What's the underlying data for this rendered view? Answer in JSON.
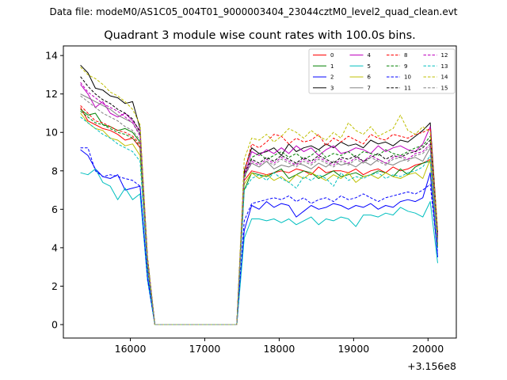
{
  "chart_data": {
    "type": "line",
    "suptitle": "Data file: modeM0/AS1C05_004T01_9000003404_23044cztM0_level2_quad_clean.evt",
    "title": "Quadrant 3 module wise count rates with 100.0s bins.",
    "xlabel": "",
    "ylabel": "",
    "x_offset_label": "+3.156e8",
    "x_offset": 315600000,
    "xlim": [
      15100,
      20380
    ],
    "ylim": [
      -0.7,
      14.5
    ],
    "xticks": [
      16000,
      17000,
      18000,
      19000,
      20000
    ],
    "yticks": [
      0,
      2,
      4,
      6,
      8,
      10,
      12,
      14
    ],
    "grid": false,
    "legend_position": "top-right",
    "x": [
      15330,
      15430,
      15530,
      15630,
      15730,
      15830,
      15930,
      16030,
      16130,
      16230,
      16330,
      16430,
      16530,
      16630,
      16730,
      16830,
      16930,
      17030,
      17130,
      17230,
      17330,
      17430,
      17530,
      17630,
      17730,
      17830,
      17930,
      18030,
      18130,
      18230,
      18330,
      18430,
      18530,
      18630,
      18730,
      18830,
      18930,
      19030,
      19130,
      19230,
      19330,
      19430,
      19530,
      19630,
      19730,
      19830,
      19930,
      20030,
      20130
    ],
    "series": [
      {
        "name": "0",
        "color": "#ff0000",
        "dash": "solid",
        "values": [
          11.3,
          10.6,
          10.4,
          10.2,
          10.1,
          9.9,
          9.6,
          9.7,
          9.2,
          3.0,
          0,
          0,
          0,
          0,
          0,
          0,
          0,
          0,
          0,
          0,
          0,
          0,
          7.5,
          8.0,
          7.9,
          7.8,
          7.9,
          8.0,
          7.9,
          8.1,
          8.0,
          7.8,
          8.2,
          7.9,
          8.0,
          8.0,
          7.9,
          8.1,
          7.8,
          8.0,
          8.1,
          7.9,
          8.2,
          8.0,
          8.1,
          8.3,
          8.4,
          8.6,
          4.2
        ]
      },
      {
        "name": "1",
        "color": "#008000",
        "dash": "solid",
        "values": [
          11.2,
          10.9,
          11.0,
          10.4,
          10.3,
          10.1,
          10.2,
          10.0,
          9.5,
          3.1,
          0,
          0,
          0,
          0,
          0,
          0,
          0,
          0,
          0,
          0,
          0,
          0,
          7.0,
          7.9,
          7.8,
          7.7,
          7.9,
          8.1,
          7.6,
          7.8,
          8.0,
          7.9,
          7.6,
          7.8,
          8.0,
          7.7,
          7.8,
          7.9,
          7.7,
          7.8,
          8.0,
          7.9,
          7.7,
          8.1,
          7.8,
          8.2,
          8.4,
          8.5,
          4.1
        ]
      },
      {
        "name": "2",
        "color": "#0000ff",
        "dash": "solid",
        "values": [
          9.1,
          8.8,
          8.1,
          7.7,
          7.6,
          7.8,
          7.0,
          7.1,
          7.2,
          2.5,
          0,
          0,
          0,
          0,
          0,
          0,
          0,
          0,
          0,
          0,
          0,
          0,
          4.9,
          6.2,
          6.0,
          6.4,
          6.1,
          6.3,
          6.2,
          5.6,
          5.9,
          6.2,
          6.0,
          6.1,
          6.3,
          6.2,
          6.0,
          6.2,
          6.1,
          6.3,
          6.0,
          6.2,
          6.1,
          6.4,
          6.5,
          6.4,
          6.6,
          7.9,
          3.5
        ]
      },
      {
        "name": "3",
        "color": "#000000",
        "dash": "solid",
        "values": [
          13.5,
          13.1,
          12.3,
          12.2,
          11.9,
          11.8,
          11.5,
          11.6,
          10.2,
          3.5,
          0,
          0,
          0,
          0,
          0,
          0,
          0,
          0,
          0,
          0,
          0,
          0,
          8.0,
          9.2,
          8.9,
          9.0,
          9.2,
          8.8,
          9.4,
          9.0,
          9.2,
          9.3,
          9.1,
          9.4,
          9.2,
          9.5,
          9.3,
          9.4,
          9.2,
          9.6,
          9.4,
          9.5,
          9.3,
          9.6,
          9.5,
          9.8,
          10.1,
          10.5,
          4.8
        ]
      },
      {
        "name": "4",
        "color": "#bf00bf",
        "dash": "solid",
        "values": [
          12.5,
          12.0,
          11.3,
          11.6,
          11.0,
          10.8,
          11.0,
          10.6,
          10.1,
          3.4,
          0,
          0,
          0,
          0,
          0,
          0,
          0,
          0,
          0,
          0,
          0,
          0,
          7.7,
          9.0,
          8.8,
          9.1,
          8.9,
          9.2,
          8.9,
          9.3,
          9.0,
          9.2,
          8.8,
          9.1,
          9.3,
          8.9,
          9.0,
          9.2,
          9.1,
          8.9,
          9.3,
          9.0,
          9.2,
          9.3,
          9.1,
          9.0,
          9.4,
          10.3,
          4.6
        ]
      },
      {
        "name": "5",
        "color": "#00bfbf",
        "dash": "solid",
        "values": [
          7.9,
          7.8,
          8.1,
          7.4,
          7.2,
          6.5,
          7.1,
          6.5,
          6.8,
          2.3,
          0,
          0,
          0,
          0,
          0,
          0,
          0,
          0,
          0,
          0,
          0,
          0,
          4.5,
          5.5,
          5.5,
          5.4,
          5.5,
          5.3,
          5.5,
          5.2,
          5.4,
          5.6,
          5.2,
          5.5,
          5.4,
          5.6,
          5.5,
          5.1,
          5.7,
          5.7,
          5.6,
          5.8,
          5.7,
          6.1,
          5.9,
          5.8,
          5.6,
          6.4,
          3.2
        ]
      },
      {
        "name": "6",
        "color": "#bfbf00",
        "dash": "solid",
        "values": [
          11.0,
          10.5,
          10.2,
          10.1,
          9.7,
          9.6,
          9.3,
          9.4,
          8.8,
          3.0,
          0,
          0,
          0,
          0,
          0,
          0,
          0,
          0,
          0,
          0,
          0,
          0,
          7.3,
          7.9,
          7.6,
          7.8,
          7.5,
          7.7,
          7.4,
          7.8,
          7.6,
          7.9,
          7.7,
          7.5,
          7.8,
          7.6,
          7.9,
          7.4,
          7.7,
          7.8,
          7.6,
          7.9,
          7.7,
          7.6,
          7.8,
          7.9,
          7.6,
          8.6,
          4.0
        ]
      },
      {
        "name": "7",
        "color": "#808080",
        "dash": "solid",
        "values": [
          12.0,
          11.8,
          11.6,
          11.4,
          11.2,
          10.9,
          10.7,
          10.5,
          9.9,
          3.3,
          0,
          0,
          0,
          0,
          0,
          0,
          0,
          0,
          0,
          0,
          0,
          0,
          7.8,
          8.4,
          8.2,
          8.5,
          8.1,
          8.3,
          8.2,
          8.4,
          8.3,
          8.1,
          8.4,
          8.2,
          8.5,
          8.3,
          8.4,
          8.2,
          8.5,
          8.3,
          8.6,
          8.4,
          8.3,
          8.5,
          8.6,
          8.7,
          8.5,
          9.2,
          4.4
        ]
      },
      {
        "name": "8",
        "color": "#ff0000",
        "dash": "dashed",
        "values": [
          11.4,
          11.0,
          10.6,
          10.5,
          10.3,
          10.1,
          10.0,
          9.8,
          9.4,
          3.1,
          0,
          0,
          0,
          0,
          0,
          0,
          0,
          0,
          0,
          0,
          0,
          0,
          7.9,
          9.4,
          9.2,
          9.5,
          9.9,
          9.8,
          9.4,
          9.7,
          9.5,
          9.6,
          9.9,
          9.3,
          9.7,
          9.5,
          9.8,
          9.6,
          9.4,
          9.9,
          9.7,
          9.6,
          9.9,
          9.8,
          9.7,
          9.9,
          10.0,
          10.2,
          4.7
        ]
      },
      {
        "name": "9",
        "color": "#008000",
        "dash": "dashed",
        "values": [
          11.1,
          10.8,
          10.5,
          10.4,
          10.2,
          10.0,
          9.9,
          9.7,
          9.3,
          3.0,
          0,
          0,
          0,
          0,
          0,
          0,
          0,
          0,
          0,
          0,
          0,
          0,
          7.6,
          8.7,
          8.9,
          8.6,
          8.8,
          9.0,
          8.7,
          8.9,
          8.6,
          8.8,
          9.1,
          8.7,
          8.9,
          8.8,
          9.0,
          8.7,
          9.0,
          8.9,
          8.8,
          9.1,
          8.9,
          8.8,
          9.0,
          9.2,
          9.3,
          9.8,
          4.5
        ]
      },
      {
        "name": "10",
        "color": "#0000ff",
        "dash": "dashed",
        "values": [
          9.2,
          9.2,
          8.0,
          7.7,
          7.8,
          7.7,
          7.6,
          7.5,
          7.2,
          2.4,
          0,
          0,
          0,
          0,
          0,
          0,
          0,
          0,
          0,
          0,
          0,
          0,
          5.4,
          6.3,
          6.4,
          6.5,
          6.6,
          6.5,
          6.7,
          6.4,
          6.6,
          6.3,
          6.5,
          6.6,
          6.4,
          6.7,
          6.5,
          6.6,
          6.8,
          6.6,
          6.4,
          6.6,
          6.7,
          6.8,
          6.9,
          6.8,
          7.0,
          7.3,
          3.7
        ]
      },
      {
        "name": "11",
        "color": "#000000",
        "dash": "dashed",
        "values": [
          12.9,
          12.4,
          12.0,
          11.7,
          11.5,
          11.2,
          11.0,
          10.7,
          10.0,
          3.4,
          0,
          0,
          0,
          0,
          0,
          0,
          0,
          0,
          0,
          0,
          0,
          0,
          7.9,
          8.6,
          8.4,
          8.7,
          8.5,
          8.8,
          8.6,
          8.4,
          8.7,
          8.5,
          8.8,
          8.6,
          8.4,
          8.7,
          8.6,
          8.8,
          8.5,
          8.7,
          8.9,
          8.6,
          8.8,
          8.7,
          8.9,
          9.0,
          9.2,
          9.6,
          4.5
        ]
      },
      {
        "name": "12",
        "color": "#bf00bf",
        "dash": "dashed",
        "values": [
          12.6,
          12.1,
          11.8,
          11.5,
          11.3,
          11.1,
          10.8,
          10.5,
          9.8,
          3.3,
          0,
          0,
          0,
          0,
          0,
          0,
          0,
          0,
          0,
          0,
          0,
          0,
          7.8,
          8.5,
          8.3,
          8.6,
          8.4,
          8.7,
          8.5,
          8.3,
          8.6,
          8.4,
          8.7,
          8.5,
          8.3,
          8.6,
          8.4,
          8.7,
          8.5,
          8.8,
          8.6,
          8.4,
          8.7,
          8.8,
          8.6,
          8.9,
          9.0,
          9.4,
          4.4
        ]
      },
      {
        "name": "13",
        "color": "#00bfbf",
        "dash": "dashed",
        "values": [
          10.8,
          10.5,
          10.2,
          9.9,
          9.7,
          9.4,
          9.2,
          9.0,
          8.5,
          2.9,
          0,
          0,
          0,
          0,
          0,
          0,
          0,
          0,
          0,
          0,
          0,
          0,
          7.0,
          7.6,
          7.8,
          7.5,
          7.9,
          7.6,
          7.4,
          7.1,
          7.7,
          7.5,
          7.8,
          7.6,
          7.2,
          7.9,
          7.5,
          7.7,
          7.6,
          7.8,
          7.9,
          7.6,
          7.8,
          7.7,
          7.9,
          8.0,
          8.2,
          8.8,
          4.0
        ]
      },
      {
        "name": "14",
        "color": "#bfbf00",
        "dash": "dashed",
        "values": [
          13.4,
          13.0,
          12.8,
          12.5,
          12.1,
          11.9,
          11.6,
          11.2,
          10.4,
          3.5,
          0,
          0,
          0,
          0,
          0,
          0,
          0,
          0,
          0,
          0,
          0,
          0,
          8.6,
          9.7,
          9.6,
          9.9,
          9.5,
          9.8,
          10.2,
          10.0,
          9.7,
          10.1,
          9.8,
          9.6,
          10.0,
          9.7,
          10.5,
          10.1,
          9.9,
          10.3,
          9.8,
          10.0,
          10.2,
          10.9,
          10.1,
          9.9,
          10.3,
          10.0,
          4.9
        ]
      },
      {
        "name": "15",
        "color": "#808080",
        "dash": "dashed",
        "values": [
          11.9,
          11.6,
          11.3,
          11.0,
          10.8,
          10.6,
          10.3,
          10.1,
          9.6,
          3.2,
          0,
          0,
          0,
          0,
          0,
          0,
          0,
          0,
          0,
          0,
          0,
          0,
          7.7,
          8.4,
          8.2,
          8.5,
          8.3,
          8.6,
          8.4,
          8.2,
          8.5,
          8.3,
          8.6,
          8.4,
          8.2,
          8.5,
          8.3,
          8.6,
          8.4,
          8.7,
          8.5,
          8.3,
          8.6,
          8.7,
          8.5,
          8.8,
          8.9,
          9.3,
          4.3
        ]
      }
    ]
  }
}
